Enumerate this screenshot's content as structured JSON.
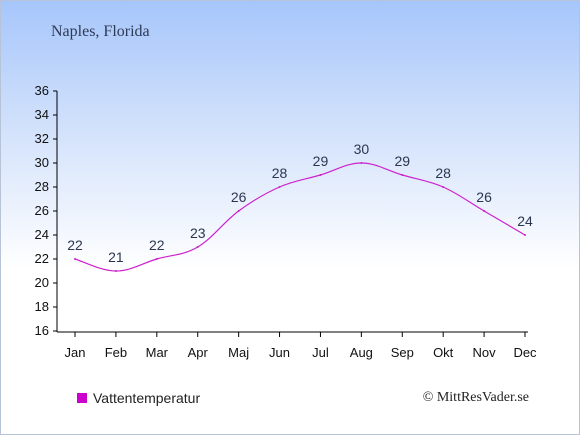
{
  "header": {
    "title": "Naples, Florida"
  },
  "footer": {
    "credit": "© MittResVader.se"
  },
  "colors": {
    "line": "#cc22cc",
    "legend_swatch": "#cc00cc"
  },
  "chart_data": {
    "type": "line",
    "categories": [
      "Jan",
      "Feb",
      "Mar",
      "Apr",
      "Maj",
      "Jun",
      "Jul",
      "Aug",
      "Sep",
      "Okt",
      "Nov",
      "Dec"
    ],
    "series": [
      {
        "name": "Vattentemperatur",
        "values": [
          22,
          21,
          22,
          23,
          26,
          28,
          29,
          30,
          29,
          28,
          26,
          24
        ]
      }
    ],
    "ylim": [
      16,
      36
    ],
    "yticks": [
      16,
      18,
      20,
      22,
      24,
      26,
      28,
      30,
      32,
      34,
      36
    ],
    "grid": false,
    "legend": "bottom-left"
  }
}
